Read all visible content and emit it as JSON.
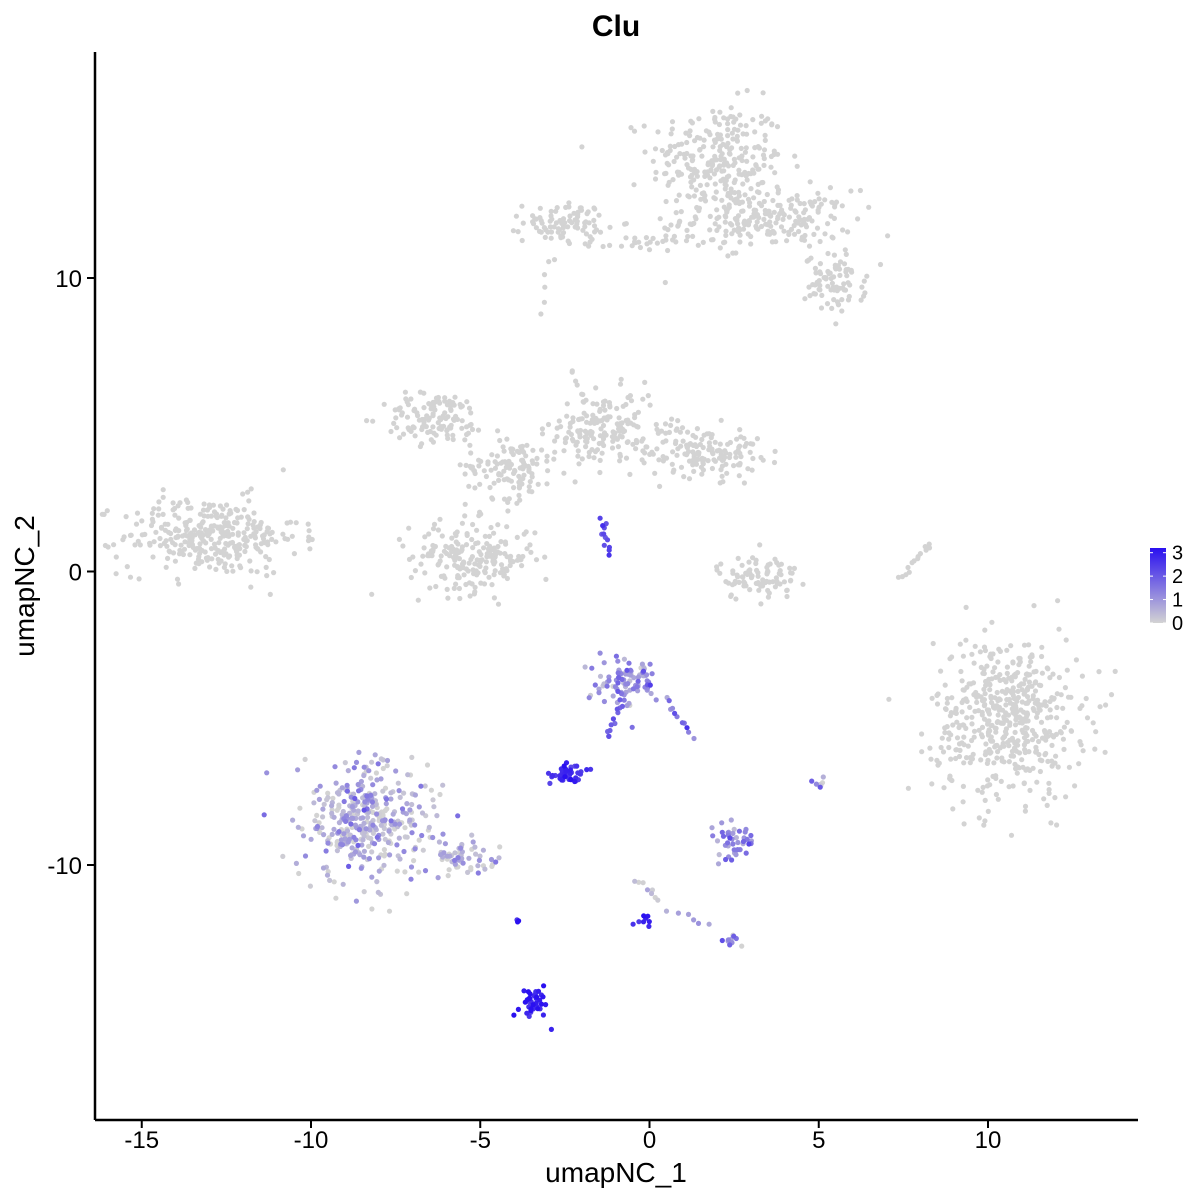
{
  "chart_data": {
    "type": "scatter",
    "title": "Clu",
    "xlabel": "umapNC_1",
    "ylabel": "umapNC_2",
    "xlim": [
      -16.5,
      14.5
    ],
    "ylim": [
      -18.6,
      17.8
    ],
    "x_ticks": [
      -15,
      -10,
      -5,
      0,
      5,
      10
    ],
    "x_tick_labels": [
      "-15",
      "-10",
      "-5",
      "0",
      "5",
      "10"
    ],
    "y_ticks": [
      -10,
      0,
      10
    ],
    "y_tick_labels": [
      "-10",
      "0",
      "10"
    ],
    "color_scale": {
      "low_color": "#d3d3d3",
      "high_color": "#2a10f0",
      "min": 0,
      "max": 3.2,
      "legend_ticks": [
        0,
        1,
        2,
        3
      ],
      "legend_tick_labels": [
        "0",
        "1",
        "2",
        "3"
      ],
      "legend_position": "right"
    },
    "grid": false,
    "clusters": [
      {
        "cx": 2.0,
        "cy": 14.0,
        "rx": 1.8,
        "ry": 1.8,
        "n": 260,
        "expr": 0
      },
      {
        "cx": 3.5,
        "cy": 12.0,
        "rx": 2.3,
        "ry": 0.9,
        "n": 220,
        "expr": 0
      },
      {
        "cx": 5.5,
        "cy": 9.8,
        "rx": 0.8,
        "ry": 0.9,
        "n": 80,
        "expr": 0
      },
      {
        "cx": -2.5,
        "cy": 11.9,
        "rx": 1.1,
        "ry": 0.6,
        "n": 90,
        "expr": 0
      },
      {
        "cx": -0.3,
        "cy": 11.2,
        "rx": 1.4,
        "ry": 0.25,
        "n": 30,
        "expr": 0
      },
      {
        "cx": -13.0,
        "cy": 1.2,
        "rx": 2.4,
        "ry": 1.2,
        "n": 330,
        "expr": 0
      },
      {
        "cx": -6.3,
        "cy": 5.2,
        "rx": 1.4,
        "ry": 0.8,
        "n": 120,
        "expr": 0
      },
      {
        "cx": -4.1,
        "cy": 3.6,
        "rx": 1.2,
        "ry": 1.0,
        "n": 120,
        "expr": 0
      },
      {
        "cx": -5.2,
        "cy": 0.5,
        "rx": 1.7,
        "ry": 1.1,
        "n": 210,
        "expr": 0
      },
      {
        "cx": -1.3,
        "cy": 4.8,
        "rx": 1.4,
        "ry": 1.2,
        "n": 170,
        "expr": 0
      },
      {
        "cx": 1.6,
        "cy": 4.1,
        "rx": 1.5,
        "ry": 0.8,
        "n": 150,
        "expr": 0
      },
      {
        "cx": 3.2,
        "cy": -0.2,
        "rx": 1.1,
        "ry": 0.7,
        "n": 90,
        "expr": 0
      },
      {
        "cx": 10.6,
        "cy": -5.0,
        "rx": 2.0,
        "ry": 2.5,
        "n": 520,
        "expr": 0
      },
      {
        "cx": -8.5,
        "cy": -8.5,
        "rx": 1.7,
        "ry": 1.8,
        "n": 380,
        "expr": 0.5
      },
      {
        "cx": -5.5,
        "cy": -9.8,
        "rx": 1.2,
        "ry": 0.5,
        "n": 60,
        "expr": 0.3
      },
      {
        "cx": -0.6,
        "cy": -3.8,
        "rx": 0.8,
        "ry": 0.8,
        "n": 90,
        "expr": 1.0
      },
      {
        "cx": -2.4,
        "cy": -6.9,
        "rx": 0.4,
        "ry": 0.25,
        "n": 45,
        "expr": 2.6
      },
      {
        "cx": 2.5,
        "cy": -9.2,
        "rx": 0.5,
        "ry": 0.5,
        "n": 45,
        "expr": 1.2
      },
      {
        "cx": -3.4,
        "cy": -14.8,
        "rx": 0.35,
        "ry": 0.7,
        "n": 40,
        "expr": 3.0
      },
      {
        "cx": 5.0,
        "cy": -7.2,
        "rx": 0.15,
        "ry": 0.3,
        "n": 8,
        "expr": 1.0
      },
      {
        "cx": -0.2,
        "cy": -11.9,
        "rx": 0.25,
        "ry": 0.2,
        "n": 8,
        "expr": 2.8
      },
      {
        "cx": 2.4,
        "cy": -12.5,
        "rx": 0.3,
        "ry": 0.2,
        "n": 10,
        "expr": 1.2
      },
      {
        "cx": -3.9,
        "cy": -11.9,
        "rx": 0.05,
        "ry": 0.1,
        "n": 3,
        "expr": 3.0
      }
    ],
    "trails": [
      {
        "x0": -1.4,
        "y0": 1.8,
        "x1": -1.2,
        "y1": 0.6,
        "n": 12,
        "expr": 2.2
      },
      {
        "x0": -1.3,
        "y0": -5.7,
        "x1": -0.7,
        "y1": -4.2,
        "n": 14,
        "expr": 1.8
      },
      {
        "x0": 0.5,
        "y0": -4.4,
        "x1": 1.3,
        "y1": -5.6,
        "n": 10,
        "expr": 1.6
      },
      {
        "x0": -0.4,
        "y0": -10.5,
        "x1": 0.3,
        "y1": -11.2,
        "n": 8,
        "expr": 0.2
      },
      {
        "x0": -2.3,
        "y0": 6.9,
        "x1": -1.9,
        "y1": 5.5,
        "n": 8,
        "expr": 0
      },
      {
        "x0": 7.4,
        "y0": -0.2,
        "x1": 8.3,
        "y1": 1.0,
        "n": 14,
        "expr": 0
      },
      {
        "x0": -3.2,
        "y0": 8.8,
        "x1": -3.0,
        "y1": 10.5,
        "n": 5,
        "expr": 0
      },
      {
        "x0": 0.6,
        "y0": -11.5,
        "x1": 1.8,
        "y1": -12.0,
        "n": 6,
        "expr": 0.8
      }
    ]
  }
}
